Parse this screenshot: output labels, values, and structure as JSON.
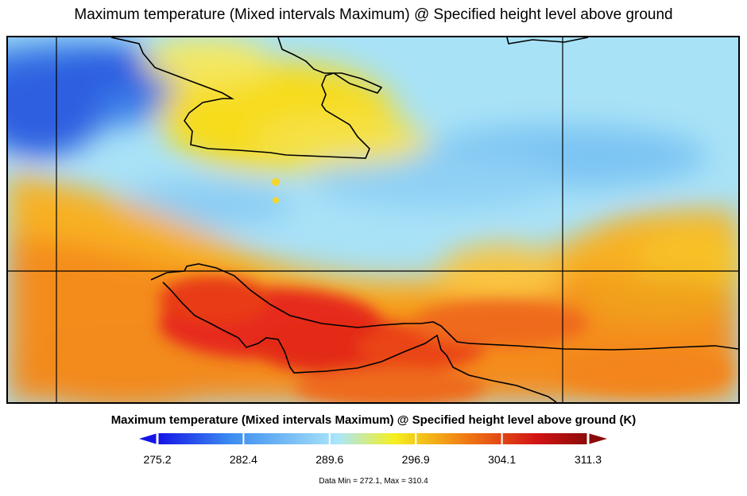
{
  "title": "Maximum temperature (Mixed intervals Maximum) @ Specified height level above ground",
  "colorbar": {
    "label": "Maximum temperature (Mixed intervals Maximum) @ Specified height level above ground (K)",
    "ticks": [
      "275.2",
      "282.4",
      "289.6",
      "296.9",
      "304.1",
      "311.3"
    ],
    "colors": [
      "#1414e6",
      "#3c8cf0",
      "#aae6fa",
      "#f5f01e",
      "#f07814",
      "#d21414",
      "#8c0a0a"
    ]
  },
  "stats": "Data Min = 272.1, Max = 310.4"
}
